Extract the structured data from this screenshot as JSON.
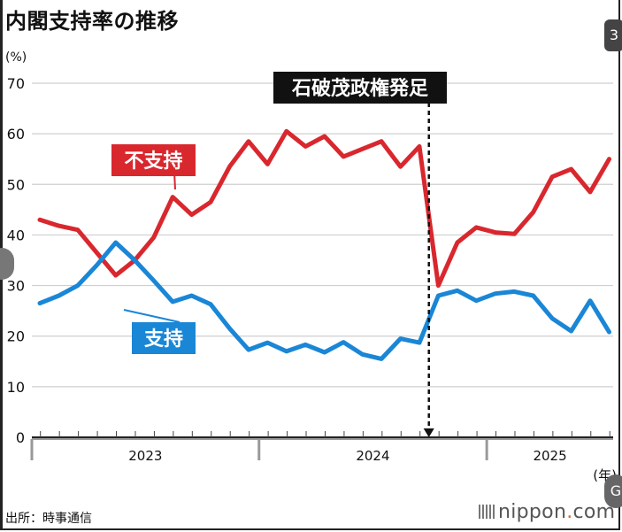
{
  "title": "内閣支持率の推移",
  "unit": "(%)",
  "source": "出所：時事通信",
  "brand": {
    "name": "nippon",
    "dot": ".",
    "tld": "com"
  },
  "side_buttons": {
    "top": "3",
    "right": "G"
  },
  "chart_data": {
    "type": "line",
    "title": "内閣支持率の推移",
    "ylabel": "(%)",
    "xlabel": "(年)",
    "ylim": [
      0,
      70
    ],
    "yticks": [
      0,
      10,
      20,
      30,
      40,
      50,
      60,
      70
    ],
    "grid": true,
    "year_labels": [
      "2023",
      "2024",
      "2025"
    ],
    "x": [
      "2023-01",
      "2023-02",
      "2023-03",
      "2023-04",
      "2023-05",
      "2023-06",
      "2023-07",
      "2023-08",
      "2023-09",
      "2023-10",
      "2023-11",
      "2023-12",
      "2024-01",
      "2024-02",
      "2024-03",
      "2024-04",
      "2024-05",
      "2024-06",
      "2024-07",
      "2024-08",
      "2024-09",
      "2024-10",
      "2024-11",
      "2024-12",
      "2025-01",
      "2025-02",
      "2025-03",
      "2025-04",
      "2025-05",
      "2025-06",
      "2025-07"
    ],
    "series": [
      {
        "name": "不支持",
        "color": "#d9272e",
        "values": [
          43,
          41.8,
          41,
          36.5,
          32,
          35,
          39.5,
          47.5,
          44,
          46.5,
          53.5,
          58.5,
          54,
          60.5,
          57.5,
          59.5,
          55.5,
          57,
          58.5,
          53.5,
          57.5,
          30,
          38.5,
          41.5,
          40.5,
          40.2,
          44.5,
          51.5,
          53,
          48.5,
          55
        ]
      },
      {
        "name": "支持",
        "color": "#1a86d6",
        "values": [
          26.5,
          28,
          30,
          34,
          38.5,
          35,
          31,
          26.8,
          28,
          26.3,
          21.5,
          17.3,
          18.7,
          17,
          18.3,
          16.8,
          18.8,
          16.4,
          15.5,
          19.5,
          18.7,
          28,
          29,
          27,
          28.4,
          28.8,
          28,
          23.5,
          21,
          27,
          20.8
        ]
      }
    ],
    "annotation": {
      "label": "石破茂政権発足",
      "x": "2024-10"
    }
  }
}
